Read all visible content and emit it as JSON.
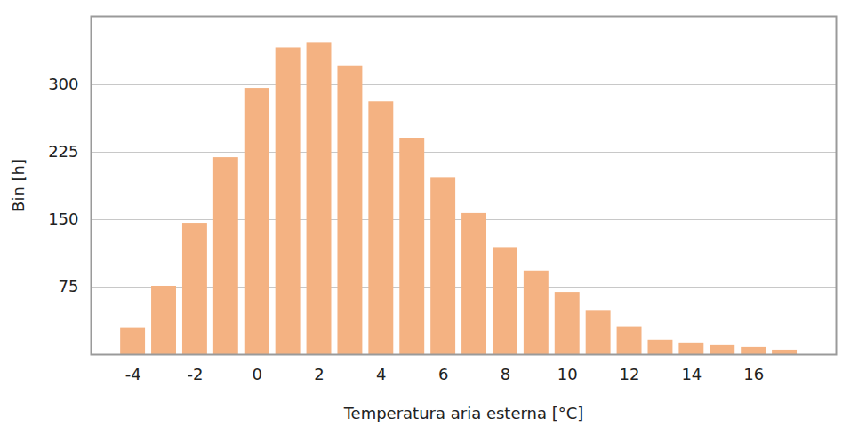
{
  "chart_data": {
    "type": "bar",
    "x": [
      -4,
      -3,
      -2,
      -1,
      0,
      1,
      2,
      3,
      4,
      5,
      6,
      7,
      8,
      9,
      10,
      11,
      12,
      13,
      14,
      15,
      16,
      17
    ],
    "values": [
      29,
      76,
      146,
      219,
      296,
      341,
      347,
      321,
      281,
      240,
      197,
      157,
      119,
      93,
      69,
      49,
      31,
      16,
      13,
      10,
      8,
      5
    ],
    "color": "#f4b282",
    "xlabel": "Temperatura aria esterna [°C]",
    "ylabel": "Bin [h]",
    "xlim": [
      -5.35,
      18.66
    ],
    "xticks": [
      -4,
      -2,
      0,
      2,
      4,
      6,
      8,
      10,
      12,
      14,
      16
    ],
    "ylim": [
      0,
      376
    ],
    "yticks": [
      75,
      150,
      225,
      300
    ],
    "grid": true
  }
}
